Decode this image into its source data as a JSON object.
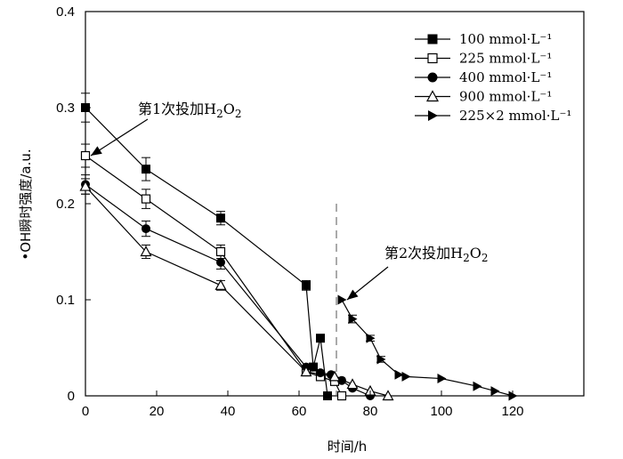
{
  "chart_data": {
    "type": "line",
    "xlabel": "时间/h",
    "ylabel": "•OH瞬时强度/a.u.",
    "xlim": [
      0,
      140
    ],
    "ylim": [
      0,
      0.4
    ],
    "xticks": [
      0,
      20,
      40,
      60,
      80,
      100,
      120
    ],
    "yticks": [
      0,
      0.1,
      0.2,
      0.3,
      0.4
    ],
    "xtick_labels": [
      "0",
      "20",
      "40",
      "60",
      "80",
      "100",
      "120"
    ],
    "ytick_labels": [
      "0",
      "0.1",
      "0.2",
      "0.3",
      "0.4"
    ],
    "grid": false,
    "legend_position": "top-right",
    "series": [
      {
        "name": "100 mmol·L⁻¹",
        "marker": "square-filled",
        "x": [
          0,
          17,
          38,
          62,
          64,
          66,
          68
        ],
        "y": [
          0.3,
          0.236,
          0.185,
          0.115,
          0.03,
          0.06,
          0.0
        ],
        "err": [
          0.015,
          0.012,
          0.007,
          0.005,
          0,
          0,
          0
        ]
      },
      {
        "name": "225 mmol·L⁻¹",
        "marker": "square-open",
        "x": [
          0,
          17,
          38,
          62,
          66,
          70,
          72
        ],
        "y": [
          0.25,
          0.205,
          0.15,
          0.025,
          0.02,
          0.015,
          0.0
        ],
        "err": [
          0.012,
          0.01,
          0.007,
          0,
          0,
          0,
          0
        ]
      },
      {
        "name": "400 mmol·L⁻¹",
        "marker": "circle-filled",
        "x": [
          0,
          17,
          38,
          62,
          66,
          69,
          72,
          75,
          80
        ],
        "y": [
          0.22,
          0.174,
          0.139,
          0.03,
          0.024,
          0.022,
          0.016,
          0.008,
          0.0
        ],
        "err": [
          0.01,
          0.008,
          0.007,
          0,
          0,
          0,
          0,
          0,
          0
        ]
      },
      {
        "name": "900 mmol·L⁻¹",
        "marker": "triangle-open",
        "x": [
          0,
          17,
          38,
          62,
          70,
          75,
          80,
          85
        ],
        "y": [
          0.218,
          0.15,
          0.115,
          0.025,
          0.02,
          0.012,
          0.005,
          0.0
        ],
        "err": [
          0.008,
          0.007,
          0.005,
          0,
          0,
          0,
          0,
          0
        ]
      },
      {
        "name": "225×2 mmol·L⁻¹",
        "marker": "triangle-right-filled",
        "x": [
          72,
          75,
          80,
          83,
          88,
          90,
          100,
          110,
          115,
          120
        ],
        "y": [
          0.1,
          0.08,
          0.06,
          0.038,
          0.022,
          0.02,
          0.018,
          0.01,
          0.005,
          0.0
        ],
        "err": [
          0,
          0.004,
          0.003,
          0.003,
          0,
          0,
          0,
          0,
          0,
          0
        ]
      }
    ],
    "reference_lines": [
      {
        "orientation": "vertical",
        "x": 70.5,
        "style": "dashed"
      }
    ],
    "annotations": [
      {
        "text_main": "第1次投加H",
        "sub1": "2",
        "text_mid": "O",
        "sub2": "2",
        "arrow_to_x": 0,
        "arrow_to_y": 0.25
      },
      {
        "text_main": "第2次投加H",
        "sub1": "2",
        "text_mid": "O",
        "sub2": "2",
        "arrow_to_x": 72,
        "arrow_to_y": 0.1
      }
    ]
  }
}
